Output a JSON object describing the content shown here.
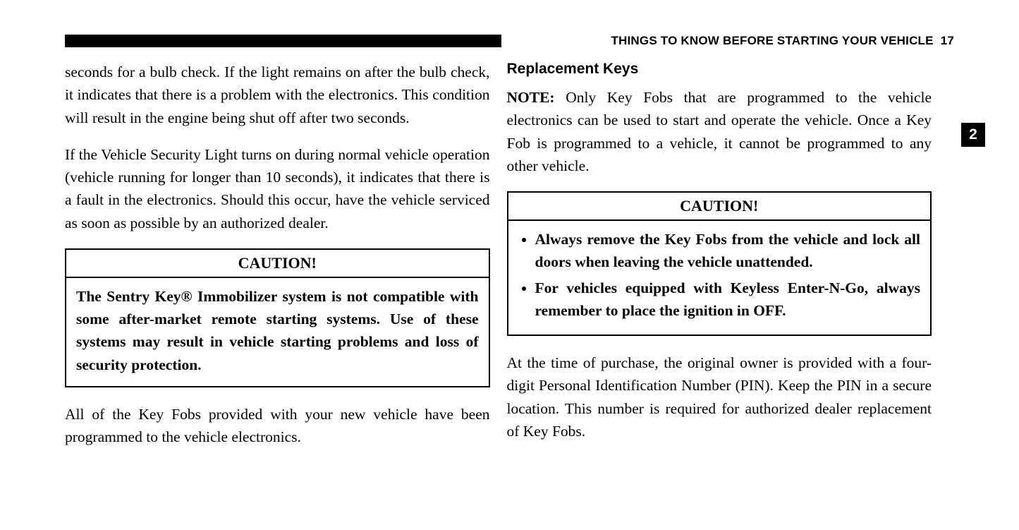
{
  "header": {
    "section_title": "THINGS TO KNOW BEFORE STARTING YOUR VEHICLE",
    "page_number": "17",
    "chapter_tab": "2"
  },
  "left_col": {
    "para1": "seconds for a bulb check. If the light remains on after the bulb check, it indicates that there is a problem with the electronics. This condition will result in the engine being shut off after two seconds.",
    "para2": "If the Vehicle Security Light turns on during normal vehicle operation (vehicle running for longer than 10 seconds), it indicates that there is a fault in the electronics. Should this occur, have the vehicle serviced as soon as possible by an authorized dealer.",
    "caution_title": "CAUTION!",
    "caution_body": "The Sentry Key® Immobilizer system is not compatible with some after-market remote starting systems. Use of these systems may result in vehicle starting problems and loss of security protection.",
    "para3": "All of the Key Fobs provided with your new vehicle have been programmed to the vehicle electronics."
  },
  "right_col": {
    "heading": "Replacement Keys",
    "note_label": "NOTE:",
    "note_body": " Only Key Fobs that are programmed to the vehicle electronics can be used to start and operate the vehicle. Once a Key Fob is programmed to a vehicle, it cannot be programmed to any other vehicle.",
    "caution_title": "CAUTION!",
    "caution_item1": "Always remove the Key Fobs from the vehicle and lock all doors when leaving the vehicle unattended.",
    "caution_item2": "For vehicles equipped with Keyless Enter-N-Go, always remember to place the ignition in OFF.",
    "para_after": "At the time of purchase, the original owner is provided with a four-digit Personal Identification Number (PIN). Keep the PIN in a secure location. This number is required for authorized dealer replacement of Key Fobs."
  },
  "colors": {
    "text": "#000000",
    "background": "#ffffff",
    "bar": "#000000"
  }
}
